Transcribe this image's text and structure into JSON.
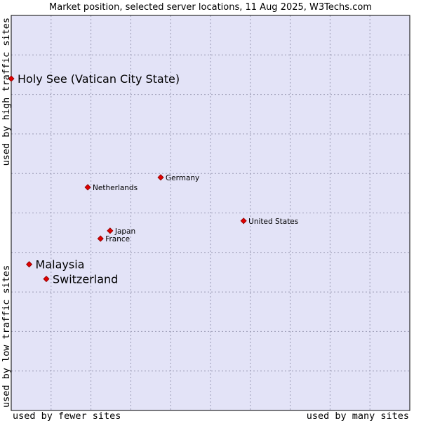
{
  "chart_data": {
    "type": "scatter",
    "title": "Market position, selected server locations, 11 Aug 2025, W3Techs.com",
    "x_axis": {
      "low_label": "used by fewer sites",
      "high_label": "used by many sites",
      "range": [
        0,
        100
      ]
    },
    "y_axis": {
      "low_label": "used by low traffic sites",
      "high_label": "used by high traffic sites",
      "range": [
        0,
        100
      ]
    },
    "grid": true,
    "points": [
      {
        "label": "Holy See (Vatican City State)",
        "x": 0,
        "y": 84,
        "emphasis": true
      },
      {
        "label": "Germany",
        "x": 37.5,
        "y": 59,
        "emphasis": false
      },
      {
        "label": "Netherlands",
        "x": 19.2,
        "y": 56.5,
        "emphasis": false
      },
      {
        "label": "United States",
        "x": 58.3,
        "y": 48,
        "emphasis": false
      },
      {
        "label": "Japan",
        "x": 24.8,
        "y": 45.5,
        "emphasis": false
      },
      {
        "label": "France",
        "x": 22.4,
        "y": 43.5,
        "emphasis": false
      },
      {
        "label": "Malaysia",
        "x": 4.5,
        "y": 37,
        "emphasis": true
      },
      {
        "label": "Switzerland",
        "x": 8.8,
        "y": 33.3,
        "emphasis": true
      }
    ],
    "colors": {
      "plot_background": "#e3e3f7",
      "border": "#000000",
      "marker": "#e00000",
      "marker_outline": "#880000"
    }
  }
}
